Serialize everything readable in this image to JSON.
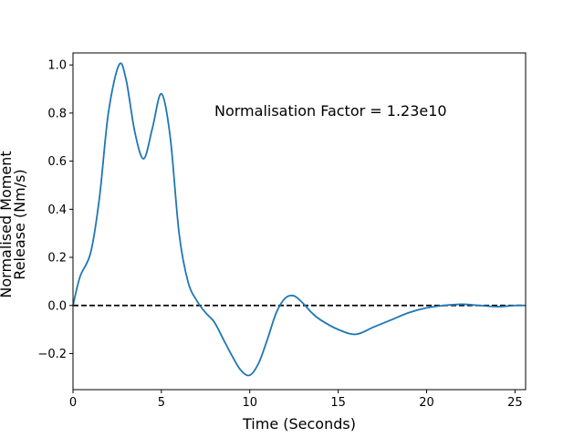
{
  "chart_data": {
    "type": "line",
    "title": "",
    "xlabel": "Time (Seconds)",
    "ylabel_lines": [
      "Normalised Moment",
      "Release (Nm/s)"
    ],
    "annotation": "Normalisation Factor = 1.23e10",
    "xlim": [
      0,
      25.6
    ],
    "ylim": [
      -0.35,
      1.05
    ],
    "xticks": [
      0,
      5,
      10,
      15,
      20,
      25
    ],
    "yticks": [
      -0.2,
      0.0,
      0.2,
      0.4,
      0.6,
      0.8,
      1.0
    ],
    "xtick_labels": [
      "0",
      "5",
      "10",
      "15",
      "20",
      "25"
    ],
    "ytick_labels": [
      "−0.2",
      "0.0",
      "0.2",
      "0.4",
      "0.6",
      "0.8",
      "1.0"
    ],
    "reference_line": {
      "y": 0,
      "style": "dashed",
      "color": "#000000"
    },
    "series": [
      {
        "color": "#1f77b4",
        "x": [
          0,
          0.4,
          1.0,
          1.5,
          2.0,
          2.6,
          3.0,
          3.5,
          4.0,
          4.5,
          5.0,
          5.5,
          6.0,
          6.5,
          7.0,
          7.5,
          8.0,
          8.5,
          9.0,
          9.5,
          10.0,
          10.5,
          11.0,
          11.5,
          12.0,
          12.5,
          13.0,
          13.5,
          14.0,
          15.0,
          16.0,
          17.0,
          18.0,
          19.0,
          20.0,
          21.0,
          22.0,
          23.0,
          24.0,
          25.0,
          25.6
        ],
        "y": [
          0.0,
          0.12,
          0.22,
          0.45,
          0.8,
          1.0,
          0.94,
          0.72,
          0.61,
          0.74,
          0.88,
          0.7,
          0.3,
          0.1,
          0.02,
          -0.03,
          -0.07,
          -0.14,
          -0.21,
          -0.27,
          -0.29,
          -0.24,
          -0.14,
          -0.03,
          0.03,
          0.04,
          0.01,
          -0.03,
          -0.06,
          -0.1,
          -0.12,
          -0.09,
          -0.06,
          -0.03,
          -0.01,
          0.0,
          0.005,
          0.0,
          -0.005,
          0.0,
          0.0
        ]
      }
    ]
  }
}
